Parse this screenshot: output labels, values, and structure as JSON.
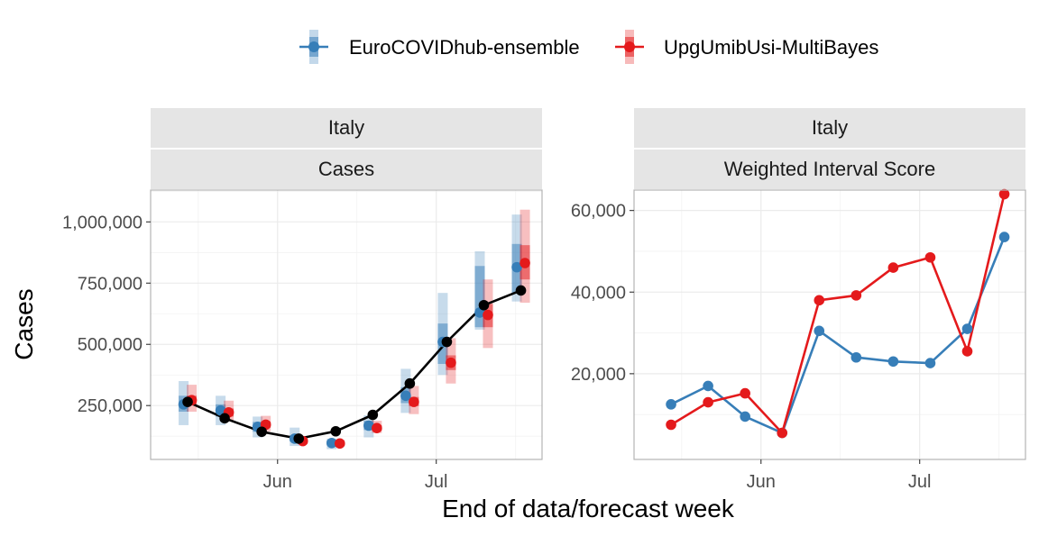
{
  "figure": {
    "xlabel": "End of data/forecast week",
    "ylabel": "Cases",
    "legend_placement": "top",
    "colors": {
      "ensemble": "#377eb8",
      "multibayes": "#e41a1c",
      "observed": "#000000",
      "strip_bg": "#e5e5e5",
      "grid": "#ebebeb",
      "border": "#b3b3b3"
    },
    "legend": [
      {
        "name": "EuroCOVIDhub-ensemble",
        "color": "#377eb8"
      },
      {
        "name": "UpgUmibUsi-MultiBayes",
        "color": "#e41a1c"
      }
    ]
  },
  "chart_data": [
    {
      "type": "line",
      "panel": "left",
      "strip_top": "Italy",
      "strip_bottom": "Cases",
      "x_ticks": [
        "Jun",
        "Jul"
      ],
      "x_tick_dates": [
        "2021-06-01",
        "2021-07-01"
      ],
      "xlim": [
        "2021-05-08",
        "2021-07-21"
      ],
      "ylim": [
        30000,
        1130000
      ],
      "y_ticks": [
        {
          "value": 250000,
          "label": "250,000"
        },
        {
          "value": 500000,
          "label": "500,000"
        },
        {
          "value": 750000,
          "label": "750,000"
        },
        {
          "value": 1000000,
          "label": "1,000,000"
        }
      ],
      "grid": true,
      "observed": {
        "name": "observed",
        "x": [
          "2021-05-15",
          "2021-05-22",
          "2021-05-29",
          "2021-06-05",
          "2021-06-12",
          "2021-06-19",
          "2021-06-26",
          "2021-07-03",
          "2021-07-10",
          "2021-07-17"
        ],
        "values": [
          265000,
          198000,
          143000,
          115000,
          145000,
          212000,
          340000,
          510000,
          660000,
          720000
        ]
      },
      "series": [
        {
          "name": "EuroCOVIDhub-ensemble",
          "x": [
            "2021-05-15",
            "2021-05-22",
            "2021-05-29",
            "2021-06-05",
            "2021-06-12",
            "2021-06-19",
            "2021-06-26",
            "2021-07-03",
            "2021-07-10",
            "2021-07-17"
          ],
          "values": [
            255000,
            230000,
            163000,
            115000,
            97000,
            168000,
            290000,
            510000,
            630000,
            815000
          ],
          "inner_lower": [
            225000,
            205000,
            143000,
            103000,
            88000,
            150000,
            260000,
            420000,
            570000,
            710000
          ],
          "inner_upper": [
            290000,
            255000,
            183000,
            128000,
            107000,
            188000,
            325000,
            585000,
            820000,
            910000
          ],
          "outer_lower": [
            170000,
            170000,
            120000,
            85000,
            72000,
            120000,
            220000,
            375000,
            560000,
            675000
          ],
          "outer_upper": [
            350000,
            290000,
            205000,
            160000,
            115000,
            210000,
            400000,
            710000,
            880000,
            1030000
          ]
        },
        {
          "name": "UpgUmibUsi-MultiBayes",
          "x": [
            "2021-05-15",
            "2021-05-22",
            "2021-05-29",
            "2021-06-05",
            "2021-06-12",
            "2021-06-19",
            "2021-06-26",
            "2021-07-03",
            "2021-07-10",
            "2021-07-17"
          ],
          "values": [
            272000,
            222000,
            172000,
            105000,
            95000,
            158000,
            265000,
            425000,
            620000,
            832000
          ],
          "inner_lower": [
            255000,
            205000,
            160000,
            100000,
            90000,
            148000,
            248000,
            395000,
            570000,
            765000
          ],
          "inner_upper": [
            290000,
            238000,
            185000,
            112000,
            102000,
            170000,
            285000,
            455000,
            665000,
            905000
          ],
          "outer_lower": [
            225000,
            185000,
            145000,
            92000,
            85000,
            138000,
            215000,
            340000,
            485000,
            670000
          ],
          "outer_upper": [
            335000,
            270000,
            208000,
            125000,
            110000,
            188000,
            330000,
            525000,
            765000,
            1050000
          ]
        }
      ]
    },
    {
      "type": "line",
      "panel": "right",
      "strip_top": "Italy",
      "strip_bottom": "Weighted Interval Score",
      "x_ticks": [
        "Jun",
        "Jul"
      ],
      "x_tick_dates": [
        "2021-06-01",
        "2021-07-01"
      ],
      "xlim": [
        "2021-05-08",
        "2021-07-21"
      ],
      "ylim": [
        -1000,
        65000
      ],
      "y_ticks": [
        {
          "value": 20000,
          "label": "20,000"
        },
        {
          "value": 40000,
          "label": "40,000"
        },
        {
          "value": 60000,
          "label": "60,000"
        }
      ],
      "grid": true,
      "series": [
        {
          "name": "EuroCOVIDhub-ensemble",
          "x": [
            "2021-05-15",
            "2021-05-22",
            "2021-05-29",
            "2021-06-05",
            "2021-06-12",
            "2021-06-19",
            "2021-06-26",
            "2021-07-03",
            "2021-07-10",
            "2021-07-17"
          ],
          "values": [
            12500,
            17000,
            9500,
            5500,
            30500,
            24000,
            23000,
            22600,
            31000,
            53500
          ]
        },
        {
          "name": "UpgUmibUsi-MultiBayes",
          "x": [
            "2021-05-15",
            "2021-05-22",
            "2021-05-29",
            "2021-06-05",
            "2021-06-12",
            "2021-06-19",
            "2021-06-26",
            "2021-07-03",
            "2021-07-10",
            "2021-07-17"
          ],
          "values": [
            7500,
            13000,
            15200,
            5500,
            38000,
            39200,
            46000,
            48500,
            25500,
            64000
          ]
        }
      ]
    }
  ]
}
